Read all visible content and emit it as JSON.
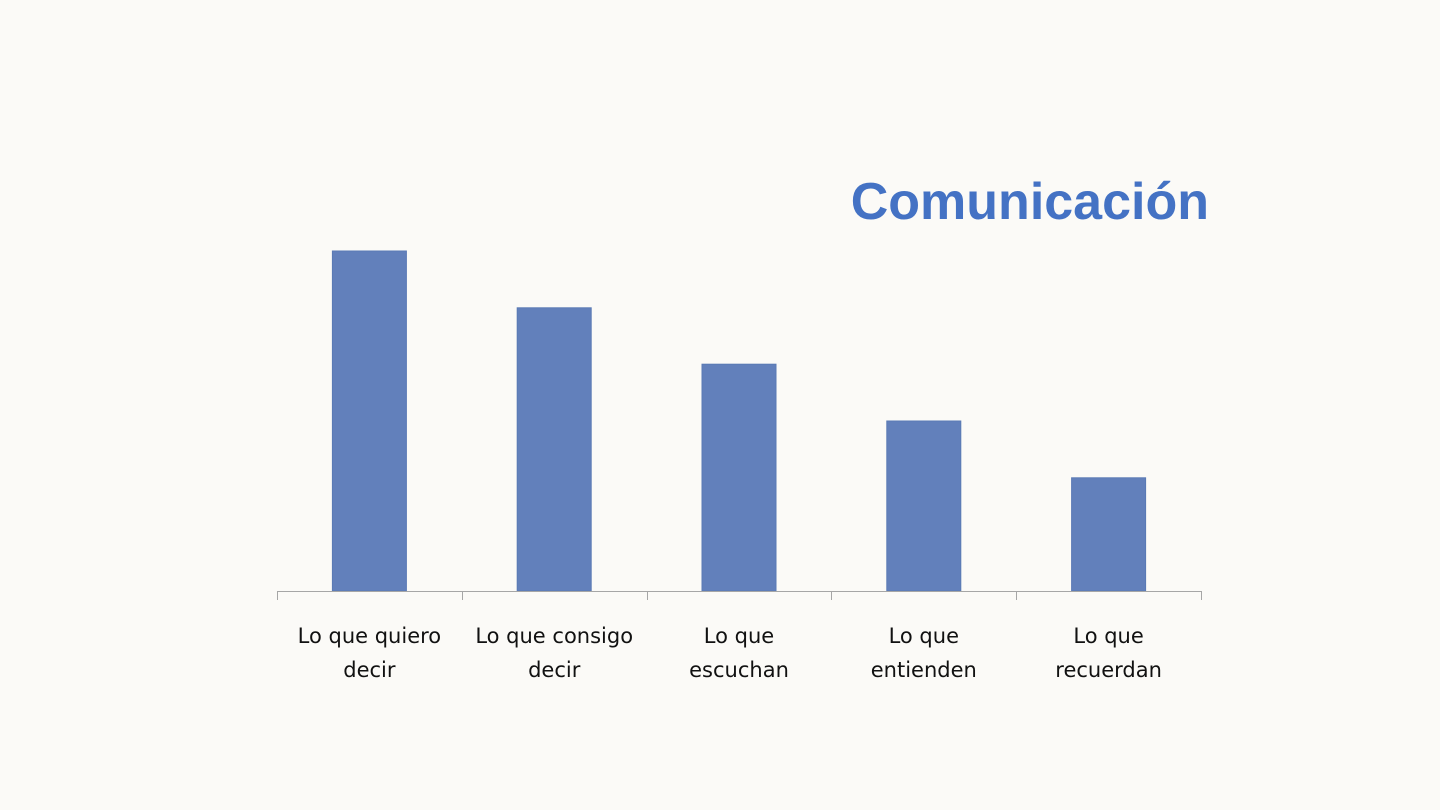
{
  "colors": {
    "title": "#4472c4",
    "bar": "#6280bb",
    "background": "#fbfaf7"
  },
  "chart_data": {
    "type": "bar",
    "title": "Comunicación",
    "categories": [
      [
        "Lo que quiero",
        "decir"
      ],
      [
        "Lo que consigo",
        "decir"
      ],
      [
        "Lo que",
        "escuchan"
      ],
      [
        "Lo que",
        "entienden"
      ],
      [
        "Lo que",
        "recuerdan"
      ]
    ],
    "values": [
      100,
      83.3,
      66.7,
      50,
      33.3
    ],
    "ylim": [
      0,
      100
    ],
    "grid": false,
    "legend": "none"
  }
}
